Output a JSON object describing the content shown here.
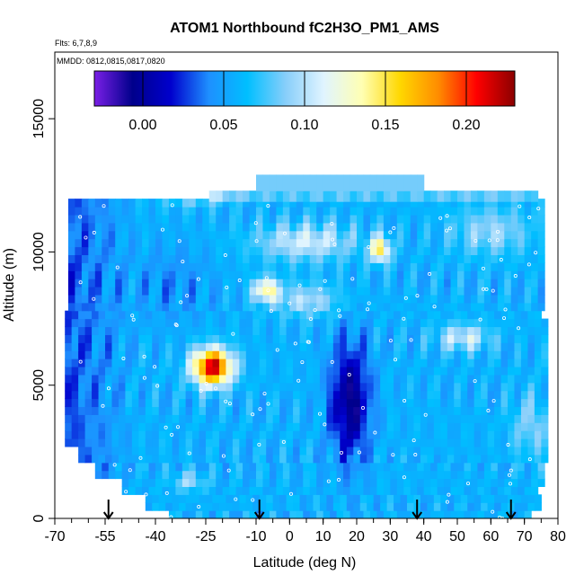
{
  "chart_data": {
    "type": "heatmap",
    "title": "ATOM1 Northbound fC2H3O_PM1_AMS",
    "flights_note": "Flts: 6,7,8,9",
    "dates_note": "MMDD: 0812,0815,0817,0820",
    "xlabel": "Latitude (deg N)",
    "ylabel": "Altitude (m)",
    "xlim": [
      -70,
      80
    ],
    "ylim": [
      0,
      17500
    ],
    "x_ticks": [
      "-70",
      "-55",
      "-40",
      "-25",
      "-10",
      "0",
      "10",
      "20",
      "30",
      "40",
      "50",
      "60",
      "70",
      "80"
    ],
    "x_tick_values": [
      -70,
      -55,
      -40,
      -25,
      -10,
      0,
      10,
      20,
      30,
      40,
      50,
      60,
      70,
      80
    ],
    "y_ticks": [
      "0",
      "5000",
      "10000",
      "15000"
    ],
    "y_tick_values": [
      0,
      5000,
      10000,
      15000
    ],
    "colorbar": {
      "range": [
        -0.03,
        0.23
      ],
      "ticks": [
        "0.00",
        "0.05",
        "0.10",
        "0.15",
        "0.20"
      ],
      "tick_values": [
        0.0,
        0.05,
        0.1,
        0.15,
        0.2
      ],
      "colors": [
        "#7a1fe6",
        "#00008b",
        "#0000cd",
        "#1e90ff",
        "#00bfff",
        "#87cefa",
        "#e0f4ff",
        "#ffffb3",
        "#ffd700",
        "#ff8c00",
        "#ff0000",
        "#8b0000"
      ]
    },
    "arrow_latitudes": [
      -54,
      -9,
      38,
      66
    ],
    "data_extent": {
      "lat_range": [
        -67,
        76
      ],
      "alt_range": [
        0,
        12900
      ]
    },
    "features": [
      {
        "description": "high value region",
        "lat": -23,
        "alt": 5800,
        "value": 0.2
      },
      {
        "description": "low value region",
        "lat": 18,
        "alt": 4500,
        "value": 0.0
      },
      {
        "description": "moderate region",
        "lat": 5,
        "alt": 10500,
        "value": 0.12
      },
      {
        "description": "moderate region",
        "lat": 27,
        "alt": 10000,
        "value": 0.14
      },
      {
        "description": "moderate region",
        "lat": -7,
        "alt": 8600,
        "value": 0.14
      }
    ]
  }
}
